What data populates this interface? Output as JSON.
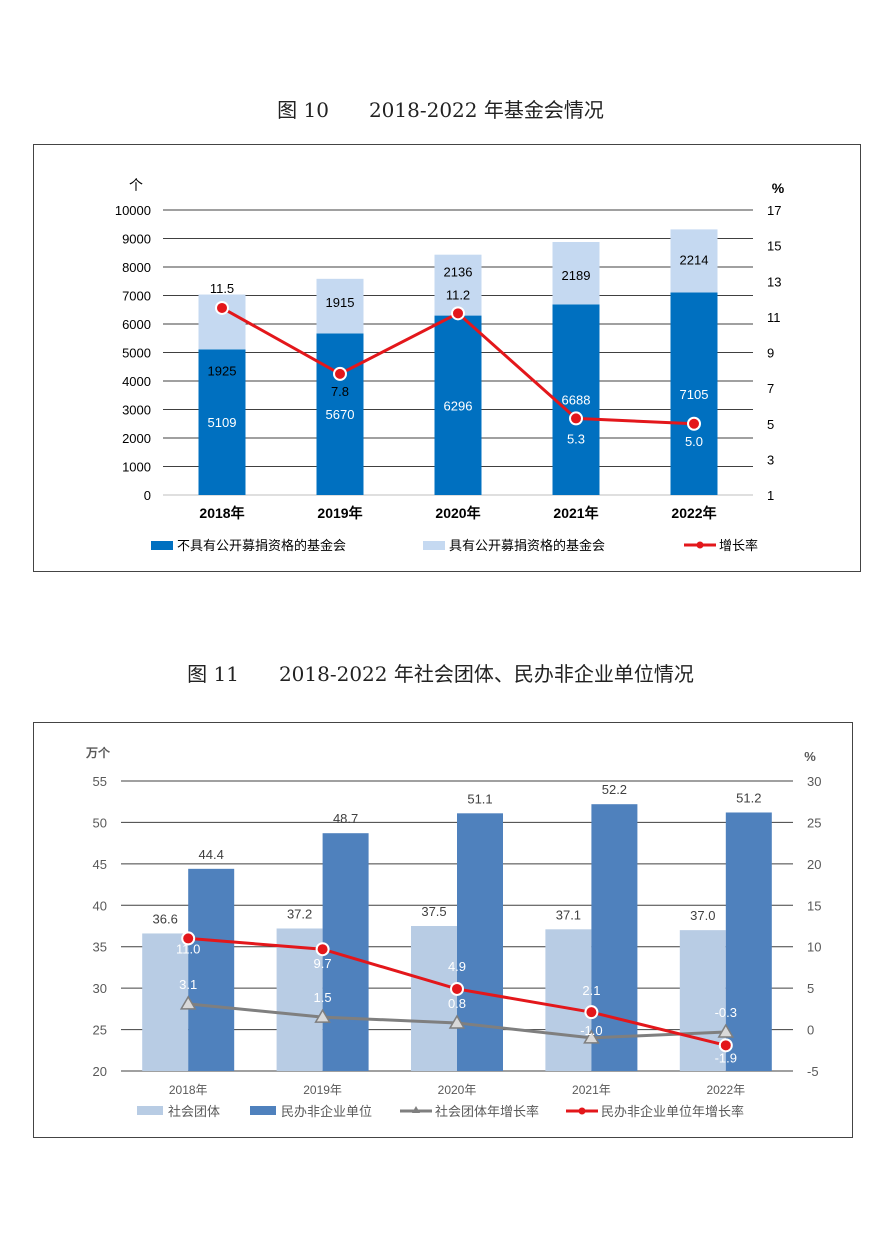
{
  "figure10": {
    "title": "图 10　　2018-2022 年基金会情况",
    "chart_data": {
      "type": "bar",
      "stacked": true,
      "categories": [
        "2018年",
        "2019年",
        "2020年",
        "2021年",
        "2022年"
      ],
      "left_unit": "个",
      "right_unit": "%",
      "ylim": [
        0,
        10000
      ],
      "yticks": [
        "0",
        "1000",
        "2000",
        "3000",
        "4000",
        "5000",
        "6000",
        "7000",
        "8000",
        "9000",
        "10000"
      ],
      "y2lim": [
        1,
        17
      ],
      "y2ticks": [
        "1",
        "3",
        "5",
        "7",
        "9",
        "11",
        "13",
        "15",
        "17"
      ],
      "grid": true,
      "legend": "bottom",
      "series": [
        {
          "name": "不具有公开募捐资格的基金会",
          "kind": "bar",
          "axis": "left",
          "color": "#0070C0",
          "values": [
            5109,
            5670,
            6296,
            6688,
            7105
          ],
          "labels": [
            "5109",
            "5670",
            "6296",
            "6688",
            "7105"
          ]
        },
        {
          "name": "具有公开募捐资格的基金会",
          "kind": "bar",
          "axis": "left",
          "color": "#C5D9F1",
          "values": [
            1925,
            1915,
            2136,
            2189,
            2214
          ],
          "labels": [
            "1925",
            "1915",
            "2136",
            "2189",
            "2214"
          ]
        },
        {
          "name": "增长率",
          "kind": "line",
          "axis": "right",
          "color": "#E3171B",
          "values": [
            11.5,
            7.8,
            11.2,
            5.3,
            5.0
          ],
          "labels": [
            "11.5",
            "7.8",
            "11.2",
            "5.3",
            "5.0"
          ]
        }
      ]
    }
  },
  "figure11": {
    "title": "图 11　　2018-2022 年社会团体、民办非企业单位情况",
    "chart_data": {
      "type": "bar",
      "categories": [
        "2018年",
        "2019年",
        "2020年",
        "2021年",
        "2022年"
      ],
      "left_unit": "万个",
      "right_unit": "%",
      "ylim": [
        20,
        55
      ],
      "yticks": [
        "20",
        "25",
        "30",
        "35",
        "40",
        "45",
        "50",
        "55"
      ],
      "y2lim": [
        -5,
        30
      ],
      "y2ticks": [
        "-5",
        "0",
        "5",
        "10",
        "15",
        "20",
        "25",
        "30"
      ],
      "grid": true,
      "legend": "bottom",
      "series": [
        {
          "name": "社会团体",
          "kind": "bar",
          "axis": "left",
          "color": "#B8CCE4",
          "values": [
            36.6,
            37.2,
            37.5,
            37.1,
            37.0
          ],
          "labels": [
            "36.6",
            "37.2",
            "37.5",
            "37.1",
            "37.0"
          ]
        },
        {
          "name": "民办非企业单位",
          "kind": "bar",
          "axis": "left",
          "color": "#4F81BD",
          "values": [
            44.4,
            48.7,
            51.1,
            52.2,
            51.2
          ],
          "labels": [
            "44.4",
            "48.7",
            "51.1",
            "52.2",
            "51.2"
          ]
        },
        {
          "name": "社会团体年增长率",
          "kind": "line",
          "axis": "right",
          "color": "#7F7F7F",
          "marker": "triangle",
          "values": [
            3.1,
            1.5,
            0.8,
            -1.0,
            -0.3
          ],
          "labels": [
            "3.1",
            "1.5",
            "0.8",
            "-1.0",
            "-0.3"
          ]
        },
        {
          "name": "民办非企业单位年增长率",
          "kind": "line",
          "axis": "right",
          "color": "#E3171B",
          "marker": "circle",
          "values": [
            11.0,
            9.7,
            4.9,
            2.1,
            -1.9
          ],
          "labels": [
            "11.0",
            "9.7",
            "4.9",
            "2.1",
            "-1.9"
          ]
        }
      ]
    }
  }
}
